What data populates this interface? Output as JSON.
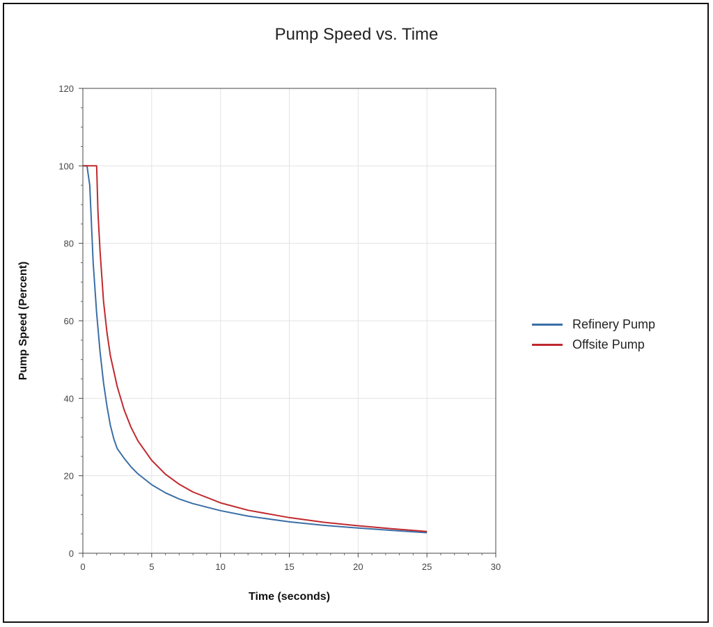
{
  "chart_data": {
    "type": "line",
    "title": "Pump Speed vs. Time",
    "xlabel": "Time (seconds)",
    "ylabel": "Pump Speed (Percent)",
    "xlim": [
      0,
      30
    ],
    "ylim": [
      0,
      120
    ],
    "x_ticks": [
      0,
      5,
      10,
      15,
      20,
      25,
      30
    ],
    "y_ticks": [
      0,
      20,
      40,
      60,
      80,
      100,
      120
    ],
    "grid": true,
    "legend_position": "right",
    "series": [
      {
        "name": "Refinery Pump",
        "color": "#3a6ea5",
        "x": [
          0,
          0.3,
          0.5,
          0.75,
          1.0,
          1.25,
          1.5,
          1.75,
          2.0,
          2.25,
          2.5,
          3.0,
          3.5,
          4.0,
          5.0,
          6.0,
          7.0,
          8.0,
          10.0,
          12.0,
          15.0,
          17.5,
          20.0,
          22.5,
          25.0
        ],
        "y": [
          100,
          100,
          95,
          75,
          62,
          52,
          44,
          38,
          33,
          29.5,
          27,
          24.5,
          22.3,
          20.5,
          17.7,
          15.6,
          14.0,
          12.8,
          11.0,
          9.6,
          8.1,
          7.2,
          6.5,
          5.9,
          5.3
        ]
      },
      {
        "name": "Offsite Pump",
        "color": "#c0282d",
        "x": [
          0,
          1.0,
          1.1,
          1.25,
          1.5,
          1.75,
          2.0,
          2.5,
          3.0,
          3.5,
          4.0,
          5.0,
          6.0,
          7.0,
          8.0,
          10.0,
          12.0,
          15.0,
          17.5,
          20.0,
          22.5,
          25.0
        ],
        "y": [
          100,
          100,
          88,
          78,
          65,
          57,
          51,
          43,
          37,
          32.5,
          29,
          24,
          20.4,
          17.8,
          15.8,
          13.0,
          11.1,
          9.2,
          8.0,
          7.1,
          6.3,
          5.6
        ]
      }
    ]
  }
}
